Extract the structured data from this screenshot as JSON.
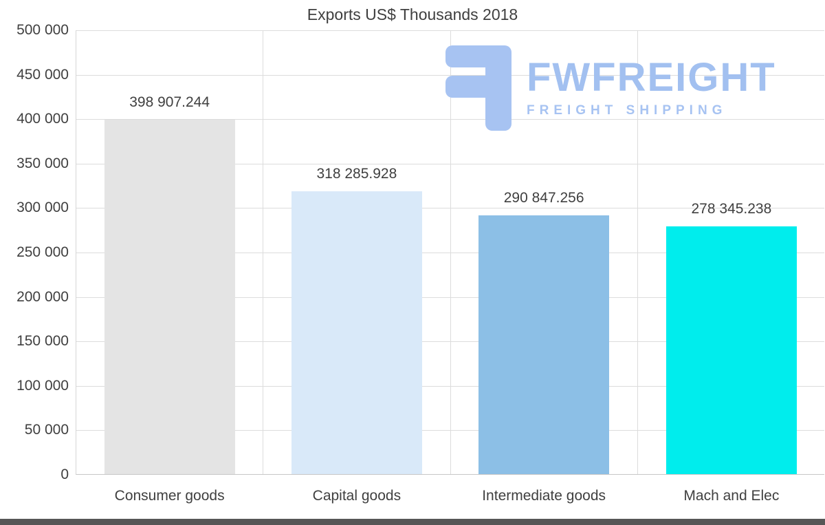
{
  "chart_data": {
    "type": "bar",
    "title": "Exports US$ Thousands 2018",
    "categories": [
      "Consumer goods",
      "Capital goods",
      "Intermediate goods",
      "Mach and Elec"
    ],
    "values": [
      398907.244,
      318285.928,
      290847.256,
      278345.238
    ],
    "value_labels": [
      "398 907.244",
      "318 285.928",
      "290 847.256",
      "278 345.238"
    ],
    "bar_colors": [
      "#e4e4e4",
      "#d9e9f9",
      "#8cbfe6",
      "#00eded"
    ],
    "xlabel": "",
    "ylabel": "",
    "ylim": [
      0,
      500000
    ],
    "ytick_step": 50000,
    "ytick_labels": [
      "0",
      "50 000",
      "100 000",
      "150 000",
      "200 000",
      "250 000",
      "300 000",
      "350 000",
      "400 000",
      "450 000",
      "500 000"
    ],
    "grid": true,
    "legend": "none"
  },
  "watermark": {
    "brand": "FWFREIGHT",
    "tagline": "FREIGHT SHIPPING",
    "color": "#a7c3f2"
  }
}
